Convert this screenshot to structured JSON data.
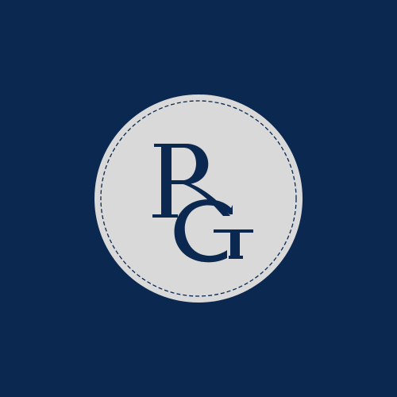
{
  "logo": {
    "monogram": "RG",
    "colors": {
      "background": "#0b2850",
      "badge_fill": "#d9d9d9",
      "badge_stitch": "#0b2850",
      "letters": "#0b2850"
    }
  }
}
